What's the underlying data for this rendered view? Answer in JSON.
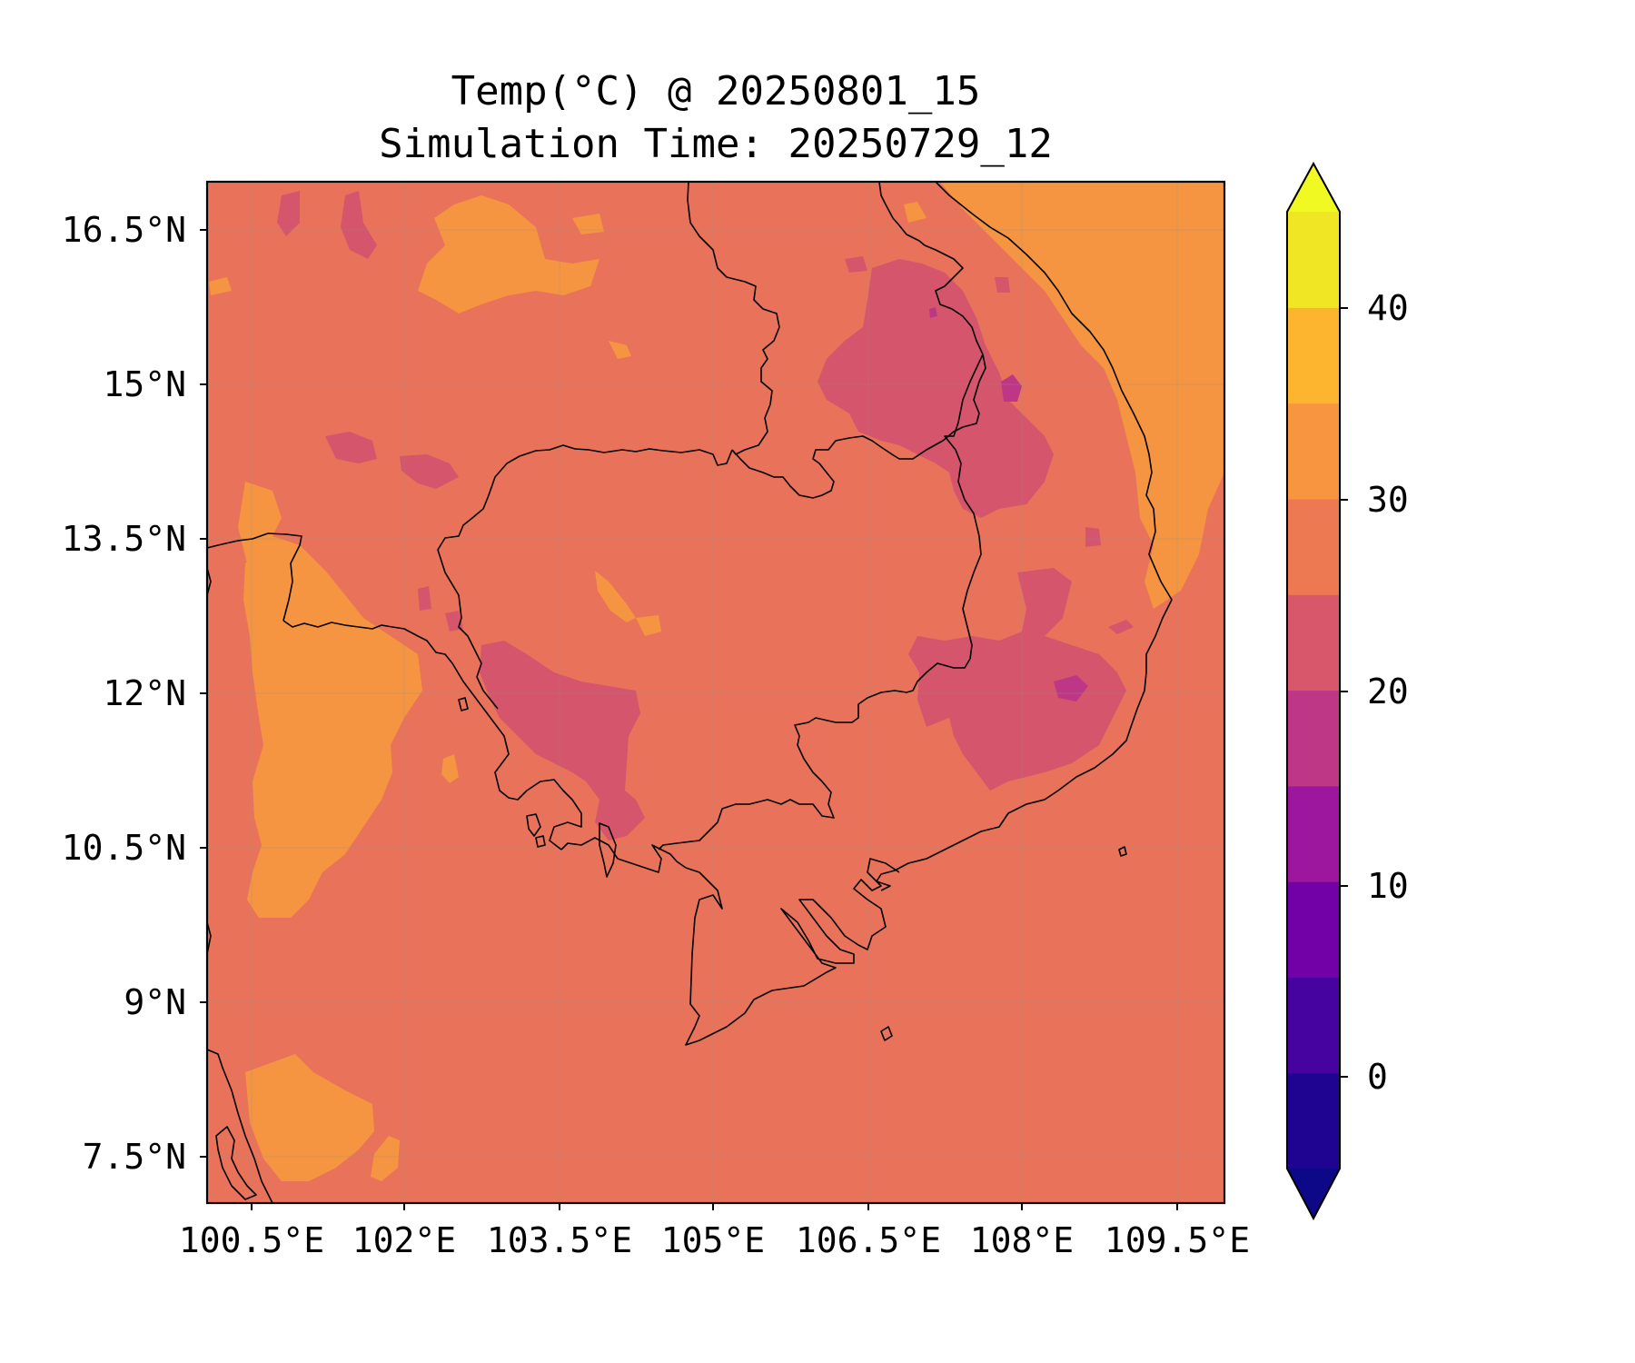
{
  "title_line1": "Temp(°C) @ 20250801_15",
  "title_line2": "Simulation Time: 20250729_12",
  "map": {
    "lon_range": [
      100.0,
      110.0
    ],
    "lat_range": [
      7.0,
      17.0
    ],
    "x_ticks": [
      "100.5°E",
      "102°E",
      "103.5°E",
      "105°E",
      "106.5°E",
      "108°E",
      "109.5°E"
    ],
    "y_ticks": [
      "16.5°N",
      "15°N",
      "13.5°N",
      "12°N",
      "10.5°N",
      "9°N",
      "7.5°N"
    ],
    "gridlines": true,
    "background_level_color": "#e8735a"
  },
  "colorbar": {
    "tick_labels": [
      "40",
      "30",
      "20",
      "10",
      "0"
    ],
    "levels": [
      -5,
      0,
      5,
      10,
      15,
      20,
      25,
      30,
      35,
      40,
      45
    ],
    "extend": "both",
    "colors": [
      "#1e0490",
      "#46039f",
      "#7201a8",
      "#9c179e",
      "#bd3786",
      "#d8576b",
      "#ed7953",
      "#f89540",
      "#fdb42f",
      "#f0e623"
    ],
    "under_color": "#0d0887",
    "over_color": "#f0f921"
  }
}
